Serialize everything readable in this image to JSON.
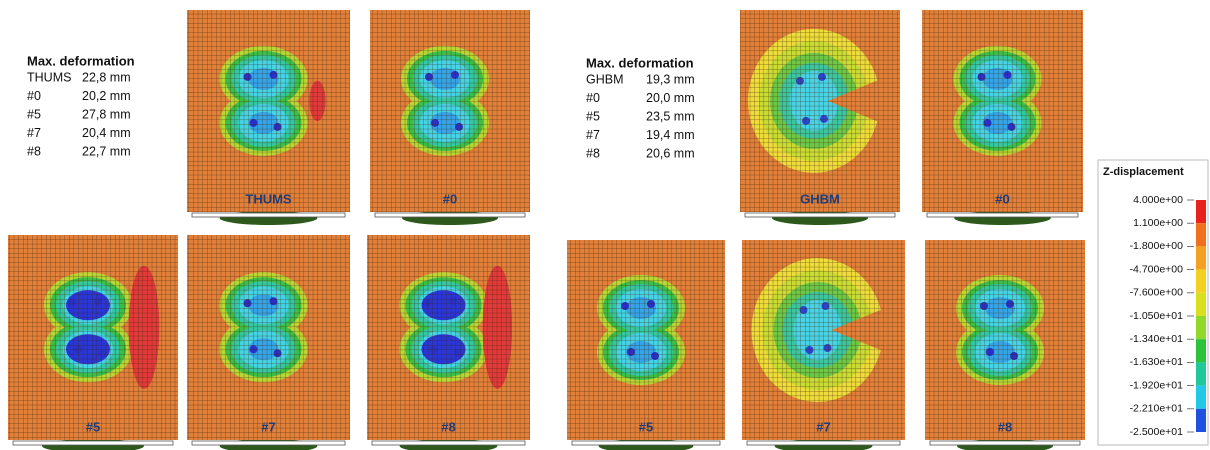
{
  "left_table": {
    "title": "Max. deformation",
    "rows": [
      [
        "THUMS",
        "22,8 mm"
      ],
      [
        "#0",
        "20,2 mm"
      ],
      [
        "#5",
        "27,8 mm"
      ],
      [
        "#7",
        "20,4 mm"
      ],
      [
        "#8",
        "22,7 mm"
      ]
    ]
  },
  "right_table": {
    "title": "Max. deformation",
    "rows": [
      [
        "GHBM",
        "19,3 mm"
      ],
      [
        "#0",
        "20,0 mm"
      ],
      [
        "#5",
        "23,5 mm"
      ],
      [
        "#7",
        "19,4 mm"
      ],
      [
        "#8",
        "20,6 mm"
      ]
    ]
  },
  "left_panels": [
    "THUMS",
    "#0",
    "#5",
    "#7",
    "#8"
  ],
  "right_panels": [
    "GHBM",
    "#0",
    "#5",
    "#7",
    "#8"
  ],
  "legend": {
    "title": "Z-displacement",
    "ticks": [
      "4.000e+00",
      "1.100e+00",
      "-1.800e+00",
      "-4.700e+00",
      "-7.600e+00",
      "-1.050e+01",
      "-1.340e+01",
      "-1.630e+01",
      "-1.920e+01",
      "-2.210e+01",
      "-2.500e+01"
    ]
  }
}
